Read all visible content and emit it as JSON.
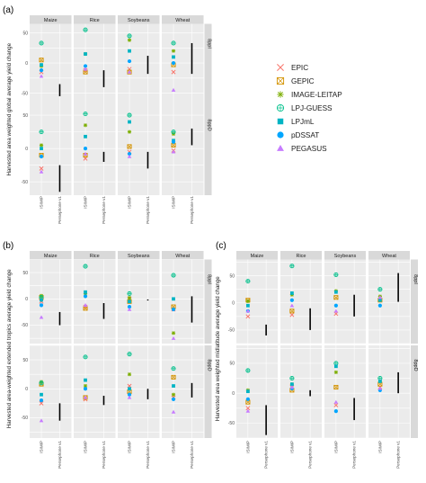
{
  "legend": [
    {
      "model": "EPIC",
      "symbol": "cross",
      "color": "#f8766d"
    },
    {
      "model": "GEPIC",
      "symbol": "boxcross",
      "color": "#d39200"
    },
    {
      "model": "IMAGE-LEITAP",
      "symbol": "asterisk",
      "color": "#7cae00"
    },
    {
      "model": "LPJ-GUESS",
      "symbol": "circleplus",
      "color": "#00c08b"
    },
    {
      "model": "LPJmL",
      "symbol": "square",
      "color": "#00b4c4"
    },
    {
      "model": "pDSSAT",
      "symbol": "circle",
      "color": "#00a6ff"
    },
    {
      "model": "PEGASUS",
      "symbol": "triangle",
      "color": "#c77cff"
    }
  ],
  "chart_data": [
    {
      "type": "scatter",
      "panel_label": "(a)",
      "ylabel": "Harvested area weighted global average yield change",
      "crops": [
        "Maize",
        "Rice",
        "Soybeans",
        "Wheat"
      ],
      "scenarios": [
        "8ppI",
        "8ppD"
      ],
      "x_categories": [
        "ISIMIP",
        "Persephone v1"
      ],
      "yticks": [
        -50,
        0,
        50
      ],
      "ylim": [
        -70,
        65
      ],
      "cells": [
        {
          "crop": "Maize",
          "scenario": "8ppI",
          "points": {
            "EPIC": -15,
            "GEPIC": 5,
            "IMAGE-LEITAP": -5,
            "LPJ-GUESS": 33,
            "LPJmL": -3,
            "pDSSAT": -12,
            "PEGASUS": -22
          },
          "range": [
            -55,
            -35
          ]
        },
        {
          "crop": "Rice",
          "scenario": "8ppI",
          "points": {
            "EPIC": -12,
            "GEPIC": -15,
            "IMAGE-LEITAP": 15,
            "LPJ-GUESS": 55,
            "LPJmL": 15,
            "pDSSAT": -5,
            "PEGASUS": -10
          },
          "range": [
            -40,
            -12
          ]
        },
        {
          "crop": "Soybeans",
          "scenario": "8ppI",
          "points": {
            "EPIC": -10,
            "GEPIC": -15,
            "IMAGE-LEITAP": 38,
            "LPJ-GUESS": 45,
            "LPJmL": 20,
            "pDSSAT": 3,
            "PEGASUS": -15
          },
          "range": [
            -18,
            12
          ]
        },
        {
          "crop": "Wheat",
          "scenario": "8ppI",
          "points": {
            "EPIC": -15,
            "GEPIC": -3,
            "IMAGE-LEITAP": 20,
            "LPJ-GUESS": 33,
            "LPJmL": 10,
            "pDSSAT": 0,
            "PEGASUS": -45
          },
          "range": [
            -18,
            33
          ]
        },
        {
          "crop": "Maize",
          "scenario": "8ppD",
          "points": {
            "EPIC": -30,
            "GEPIC": -10,
            "IMAGE-LEITAP": 5,
            "LPJ-GUESS": 25,
            "LPJmL": 0,
            "pDSSAT": -12,
            "PEGASUS": -35
          },
          "range": [
            -65,
            -25
          ]
        },
        {
          "crop": "Rice",
          "scenario": "8ppD",
          "points": {
            "EPIC": -15,
            "GEPIC": -10,
            "IMAGE-LEITAP": 35,
            "LPJ-GUESS": 52,
            "LPJmL": 18,
            "pDSSAT": 0,
            "PEGASUS": -8
          },
          "range": [
            -20,
            -5
          ]
        },
        {
          "crop": "Soybeans",
          "scenario": "8ppD",
          "points": {
            "EPIC": -5,
            "GEPIC": 3,
            "IMAGE-LEITAP": 25,
            "LPJ-GUESS": 50,
            "LPJmL": 40,
            "pDSSAT": -8,
            "PEGASUS": -12
          },
          "range": [
            -30,
            -5
          ]
        },
        {
          "crop": "Wheat",
          "scenario": "8ppD",
          "points": {
            "EPIC": -3,
            "GEPIC": 5,
            "IMAGE-LEITAP": 22,
            "LPJ-GUESS": 25,
            "LPJmL": 12,
            "pDSSAT": 10,
            "PEGASUS": -5
          },
          "range": [
            5,
            30
          ]
        }
      ]
    },
    {
      "type": "scatter",
      "panel_label": "(b)",
      "ylabel": "Harvested area-weighted extended tropics average yield change",
      "crops": [
        "Maize",
        "Rice",
        "Soybeans",
        "Wheat"
      ],
      "scenarios": [
        "8ppI",
        "8ppD"
      ],
      "x_categories": [
        "ISIMIP",
        "Persephone v1"
      ],
      "yticks": [
        -50,
        0,
        50
      ],
      "ylim": [
        -85,
        75
      ],
      "cells": [
        {
          "crop": "Maize",
          "scenario": "8ppI",
          "points": {
            "EPIC": -5,
            "GEPIC": 3,
            "IMAGE-LEITAP": 6,
            "LPJ-GUESS": 3,
            "LPJmL": -2,
            "pDSSAT": -12,
            "PEGASUS": -35
          },
          "range": [
            -50,
            -25
          ]
        },
        {
          "crop": "Rice",
          "scenario": "8ppI",
          "points": {
            "EPIC": -15,
            "GEPIC": -18,
            "IMAGE-LEITAP": 10,
            "LPJ-GUESS": 62,
            "LPJmL": 13,
            "pDSSAT": 5,
            "PEGASUS": -12
          },
          "range": [
            -38,
            -8
          ]
        },
        {
          "crop": "Soybeans",
          "scenario": "8ppI",
          "points": {
            "EPIC": 0,
            "GEPIC": -5,
            "IMAGE-LEITAP": 2,
            "LPJ-GUESS": 10,
            "LPJmL": -5,
            "pDSSAT": -15,
            "PEGASUS": -20
          },
          "range": [
            -3,
            -1
          ]
        },
        {
          "crop": "Wheat",
          "scenario": "8ppI",
          "points": {
            "EPIC": -20,
            "GEPIC": -15,
            "IMAGE-LEITAP": -65,
            "LPJ-GUESS": 45,
            "LPJmL": 0,
            "pDSSAT": -20,
            "PEGASUS": -75
          },
          "range": [
            -45,
            5
          ]
        },
        {
          "crop": "Maize",
          "scenario": "8ppD",
          "points": {
            "EPIC": -25,
            "GEPIC": 8,
            "IMAGE-LEITAP": 12,
            "LPJ-GUESS": 10,
            "LPJmL": -10,
            "pDSSAT": -20,
            "PEGASUS": -55
          },
          "range": [
            -55,
            -25
          ]
        },
        {
          "crop": "Rice",
          "scenario": "8ppD",
          "points": {
            "EPIC": -18,
            "GEPIC": -15,
            "IMAGE-LEITAP": 5,
            "LPJ-GUESS": 55,
            "LPJmL": 15,
            "pDSSAT": 0,
            "PEGASUS": -15
          },
          "range": [
            -28,
            -12
          ]
        },
        {
          "crop": "Soybeans",
          "scenario": "8ppD",
          "points": {
            "EPIC": 5,
            "GEPIC": -5,
            "IMAGE-LEITAP": 25,
            "LPJ-GUESS": 60,
            "LPJmL": 0,
            "pDSSAT": -10,
            "PEGASUS": -15
          },
          "range": [
            -18,
            0
          ]
        },
        {
          "crop": "Wheat",
          "scenario": "8ppD",
          "points": {
            "EPIC": -15,
            "GEPIC": 20,
            "IMAGE-LEITAP": -10,
            "LPJ-GUESS": 35,
            "LPJmL": 5,
            "pDSSAT": -18,
            "PEGASUS": -40
          },
          "range": [
            -15,
            10
          ]
        }
      ]
    },
    {
      "type": "scatter",
      "panel_label": "(c)",
      "ylabel": "Harvested area weighted midlatitude average yield change",
      "crops": [
        "Maize",
        "Rice",
        "Soybeans",
        "Wheat"
      ],
      "scenarios": [
        "8ppI",
        "8ppD"
      ],
      "x_categories": [
        "ISIMIP",
        "Persephone v1"
      ],
      "yticks": [
        -50,
        0,
        50
      ],
      "ylim": [
        -75,
        80
      ],
      "cells": [
        {
          "crop": "Maize",
          "scenario": "8ppI",
          "points": {
            "EPIC": -25,
            "GEPIC": 5,
            "IMAGE-LEITAP": 3,
            "LPJ-GUESS": 40,
            "LPJmL": -5,
            "pDSSAT": -15,
            "PEGASUS": -15
          },
          "range": [
            -60,
            -40
          ]
        },
        {
          "crop": "Rice",
          "scenario": "8ppI",
          "points": {
            "EPIC": -22,
            "GEPIC": -15,
            "IMAGE-LEITAP": 15,
            "LPJ-GUESS": 68,
            "LPJmL": 18,
            "pDSSAT": 5,
            "PEGASUS": -5
          },
          "range": [
            -50,
            -10
          ]
        },
        {
          "crop": "Soybeans",
          "scenario": "8ppI",
          "points": {
            "EPIC": -20,
            "GEPIC": 10,
            "IMAGE-LEITAP": 22,
            "LPJ-GUESS": 52,
            "LPJmL": 20,
            "pDSSAT": -5,
            "PEGASUS": -15
          },
          "range": [
            -25,
            15
          ]
        },
        {
          "crop": "Wheat",
          "scenario": "8ppI",
          "points": {
            "EPIC": 5,
            "GEPIC": 5,
            "IMAGE-LEITAP": 12,
            "LPJ-GUESS": 25,
            "LPJmL": 5,
            "pDSSAT": -5,
            "PEGASUS": 10
          },
          "range": [
            2,
            55
          ]
        },
        {
          "crop": "Maize",
          "scenario": "8ppD",
          "points": {
            "EPIC": -25,
            "GEPIC": -15,
            "IMAGE-LEITAP": 5,
            "LPJ-GUESS": 38,
            "LPJmL": 3,
            "pDSSAT": -10,
            "PEGASUS": -30
          },
          "range": [
            -70,
            -20
          ]
        },
        {
          "crop": "Rice",
          "scenario": "8ppD",
          "points": {
            "EPIC": 10,
            "GEPIC": 5,
            "IMAGE-LEITAP": 15,
            "LPJ-GUESS": 25,
            "LPJmL": 15,
            "pDSSAT": 8,
            "PEGASUS": 10
          },
          "range": [
            -5,
            5
          ]
        },
        {
          "crop": "Soybeans",
          "scenario": "8ppD",
          "points": {
            "EPIC": -20,
            "GEPIC": 10,
            "IMAGE-LEITAP": 35,
            "LPJ-GUESS": 50,
            "LPJmL": 45,
            "pDSSAT": -30,
            "PEGASUS": -15
          },
          "range": [
            -45,
            -8
          ]
        },
        {
          "crop": "Wheat",
          "scenario": "8ppD",
          "points": {
            "EPIC": 10,
            "GEPIC": 15,
            "IMAGE-LEITAP": 20,
            "LPJ-GUESS": 25,
            "LPJmL": 20,
            "pDSSAT": 5,
            "PEGASUS": 8
          },
          "range": [
            0,
            35
          ]
        }
      ]
    }
  ]
}
